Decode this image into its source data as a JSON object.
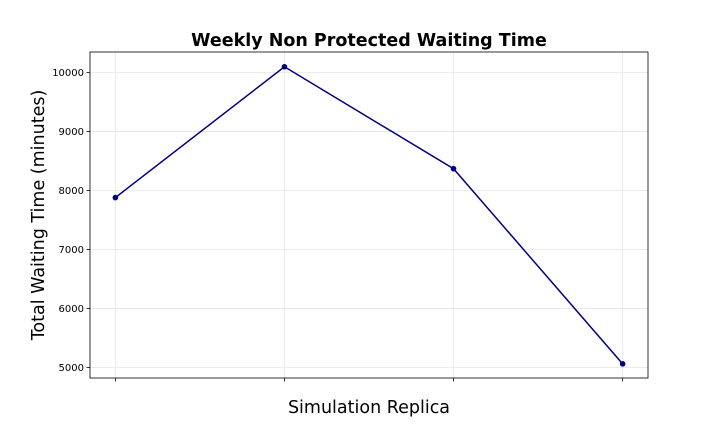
{
  "chart_data": {
    "type": "line",
    "title": "Weekly Non Protected Waiting Time",
    "xlabel": "Simulation Replica",
    "ylabel": "Total Waiting Time (minutes)",
    "x": [
      1,
      2,
      3,
      4
    ],
    "x_tick_labels": [
      "",
      "",
      "",
      ""
    ],
    "ylim": [
      4820,
      10350
    ],
    "yticks": [
      5000,
      6000,
      7000,
      8000,
      9000,
      10000
    ],
    "grid": true,
    "series": [
      {
        "values": [
          7880,
          10100,
          8370,
          5060
        ],
        "color": "#000080",
        "marker": "circle"
      }
    ]
  }
}
